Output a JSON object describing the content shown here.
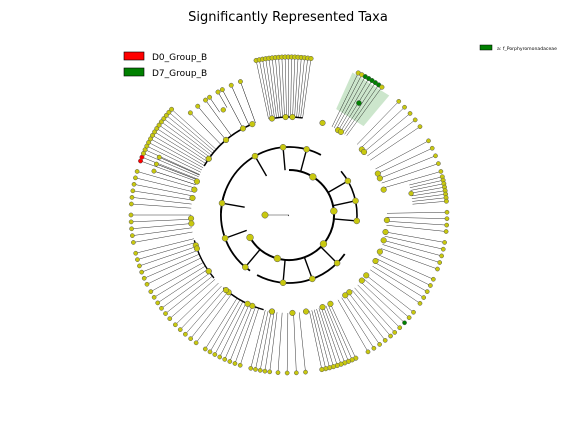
{
  "chart_data": {
    "type": "cladogram",
    "title": "Significantly Represented Taxa",
    "legend_position": "upper-left",
    "groups": [
      {
        "name": "D0_Group_B",
        "color": "#ff0000"
      },
      {
        "name": "D7_Group_B",
        "color": "#008000"
      }
    ],
    "node_color": "#c8c80f",
    "highlighted_clades": [
      {
        "label": "a: f_Porphyromonadaceae",
        "group": "D7_Group_B",
        "color": "#008000"
      }
    ]
  }
}
